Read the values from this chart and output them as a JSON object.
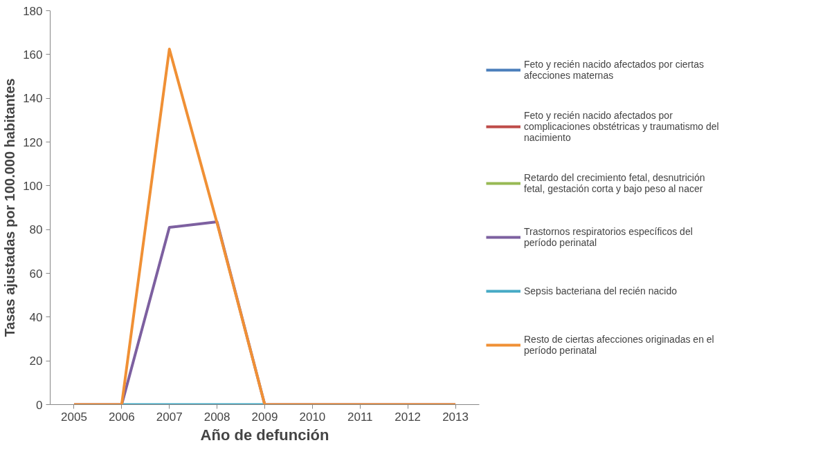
{
  "chart_data": {
    "type": "line",
    "xlabel": "Año de defunción",
    "ylabel": "Tasas ajustadas por 100.000 habitantes",
    "categories": [
      "2005",
      "2006",
      "2007",
      "2008",
      "2009",
      "2010",
      "2011",
      "2012",
      "2013"
    ],
    "ylim": [
      0,
      180
    ],
    "yticks": [
      0,
      20,
      40,
      60,
      80,
      100,
      120,
      140,
      160,
      180
    ],
    "grid": false,
    "legend": "right",
    "marker": "none",
    "line_style": "solid",
    "series": [
      {
        "name": "Feto y recién nacido afectados por ciertas afecciones maternas",
        "color": "#4a7ebb",
        "values": [
          null,
          null,
          null,
          null,
          null,
          null,
          null,
          null,
          null
        ]
      },
      {
        "name": "Feto y recién nacido afectados por complicaciones obstétricas y traumatismo del nacimiento",
        "color": "#be4b48",
        "values": [
          null,
          null,
          null,
          null,
          null,
          null,
          null,
          null,
          null
        ]
      },
      {
        "name": "Retardo del crecimiento fetal, desnutrición fetal, gestación corta y bajo peso al nacer",
        "color": "#98b954",
        "values": [
          null,
          null,
          null,
          null,
          null,
          null,
          null,
          null,
          null
        ]
      },
      {
        "name": "Trastornos respiratorios específicos del período perinatal",
        "color": "#7d60a0",
        "values": [
          0,
          0,
          81,
          83.5,
          0,
          0,
          0,
          0,
          0
        ]
      },
      {
        "name": "Sepsis bacteriana del recién nacido",
        "color": "#46aac5",
        "values": [
          null,
          0,
          0,
          0,
          0,
          null,
          null,
          null,
          null
        ]
      },
      {
        "name": "Resto de ciertas afecciones originadas en el período perinatal",
        "color": "#f09035",
        "values": [
          0,
          0,
          162.5,
          83,
          0,
          0,
          0,
          0,
          0
        ]
      }
    ]
  }
}
